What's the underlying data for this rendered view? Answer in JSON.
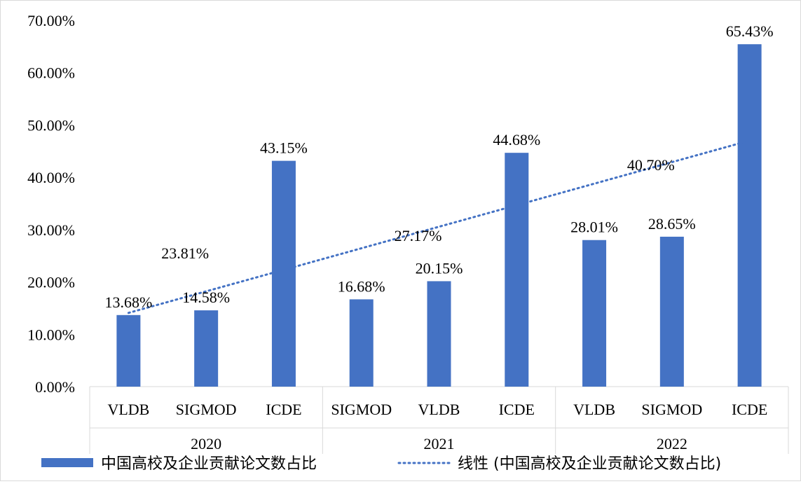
{
  "chart_data": {
    "type": "bar",
    "groups": [
      {
        "label": "2020",
        "categories": [
          "VLDB",
          "SIGMOD",
          "ICDE"
        ]
      },
      {
        "label": "2021",
        "categories": [
          "SIGMOD",
          "VLDB",
          "ICDE"
        ]
      },
      {
        "label": "2022",
        "categories": [
          "VLDB",
          "SIGMOD",
          "ICDE"
        ]
      }
    ],
    "series": [
      {
        "name": "中国高校及企业贡献论文数占比",
        "values": [
          13.68,
          14.58,
          43.15,
          16.68,
          20.15,
          44.68,
          28.01,
          28.65,
          65.43
        ],
        "labels": [
          "13.68%",
          "14.58%",
          "43.15%",
          "16.68%",
          "20.15%",
          "44.68%",
          "28.01%",
          "28.65%",
          "65.43%"
        ]
      }
    ],
    "trendline": {
      "name": "线性 (中国高校及企业贡献论文数占比)",
      "type": "linear",
      "group_average_labels": [
        "23.81%",
        "27.17%",
        "40.70%"
      ]
    },
    "y_axis": {
      "min": 0,
      "max": 70,
      "step": 10,
      "tick_labels": [
        "0.00%",
        "10.00%",
        "20.00%",
        "30.00%",
        "40.00%",
        "50.00%",
        "60.00%",
        "70.00%"
      ]
    },
    "xlabel": "",
    "ylabel": "",
    "legend_position": "bottom",
    "colors": {
      "bar": "#4472c4",
      "trendline": "#4472c4",
      "axis": "#d9d9d9"
    }
  }
}
